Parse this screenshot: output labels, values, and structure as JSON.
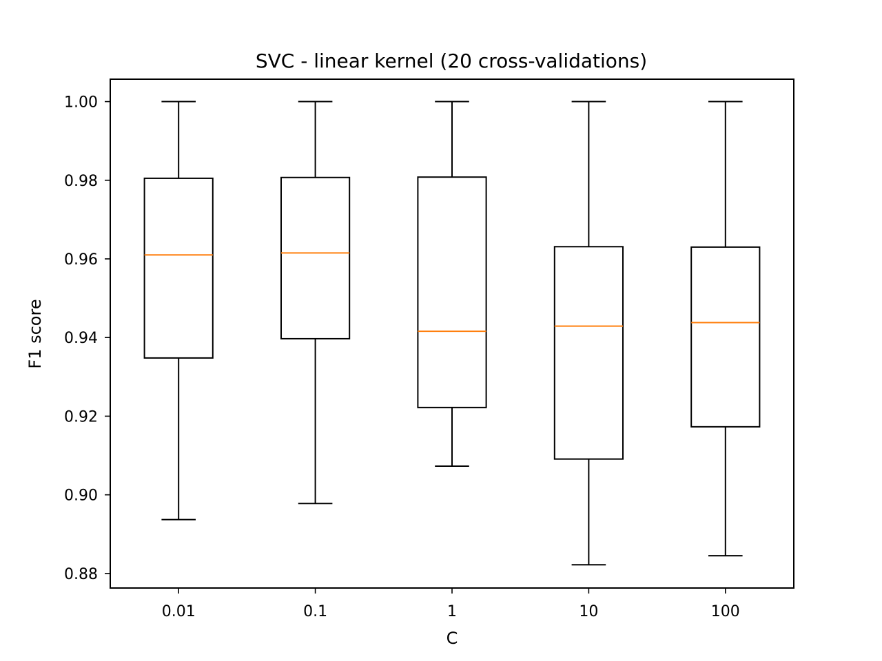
{
  "chart_data": {
    "type": "box",
    "title": "SVC - linear kernel (20 cross-validations)",
    "xlabel": "C",
    "ylabel": "F1 score",
    "categories": [
      "0.01",
      "0.1",
      "1",
      "10",
      "100"
    ],
    "ylim": [
      0.8763,
      1.0057
    ],
    "yticks": [
      0.88,
      0.9,
      0.92,
      0.94,
      0.96,
      0.98,
      1.0
    ],
    "ytick_labels": [
      "0.88",
      "0.90",
      "0.92",
      "0.94",
      "0.96",
      "0.98",
      "1.00"
    ],
    "grid": false,
    "boxes": [
      {
        "whisker_low": 0.8937,
        "q1": 0.9348,
        "median": 0.961,
        "q3": 0.9805,
        "whisker_high": 1.0
      },
      {
        "whisker_low": 0.8978,
        "q1": 0.9397,
        "median": 0.9615,
        "q3": 0.9807,
        "whisker_high": 1.0
      },
      {
        "whisker_low": 0.9073,
        "q1": 0.9222,
        "median": 0.9416,
        "q3": 0.9808,
        "whisker_high": 1.0
      },
      {
        "whisker_low": 0.8822,
        "q1": 0.9091,
        "median": 0.9429,
        "q3": 0.9631,
        "whisker_high": 1.0
      },
      {
        "whisker_low": 0.8845,
        "q1": 0.9173,
        "median": 0.9438,
        "q3": 0.963,
        "whisker_high": 1.0
      }
    ],
    "colors": {
      "box": "#000000",
      "median": "#ff7f0e"
    }
  }
}
